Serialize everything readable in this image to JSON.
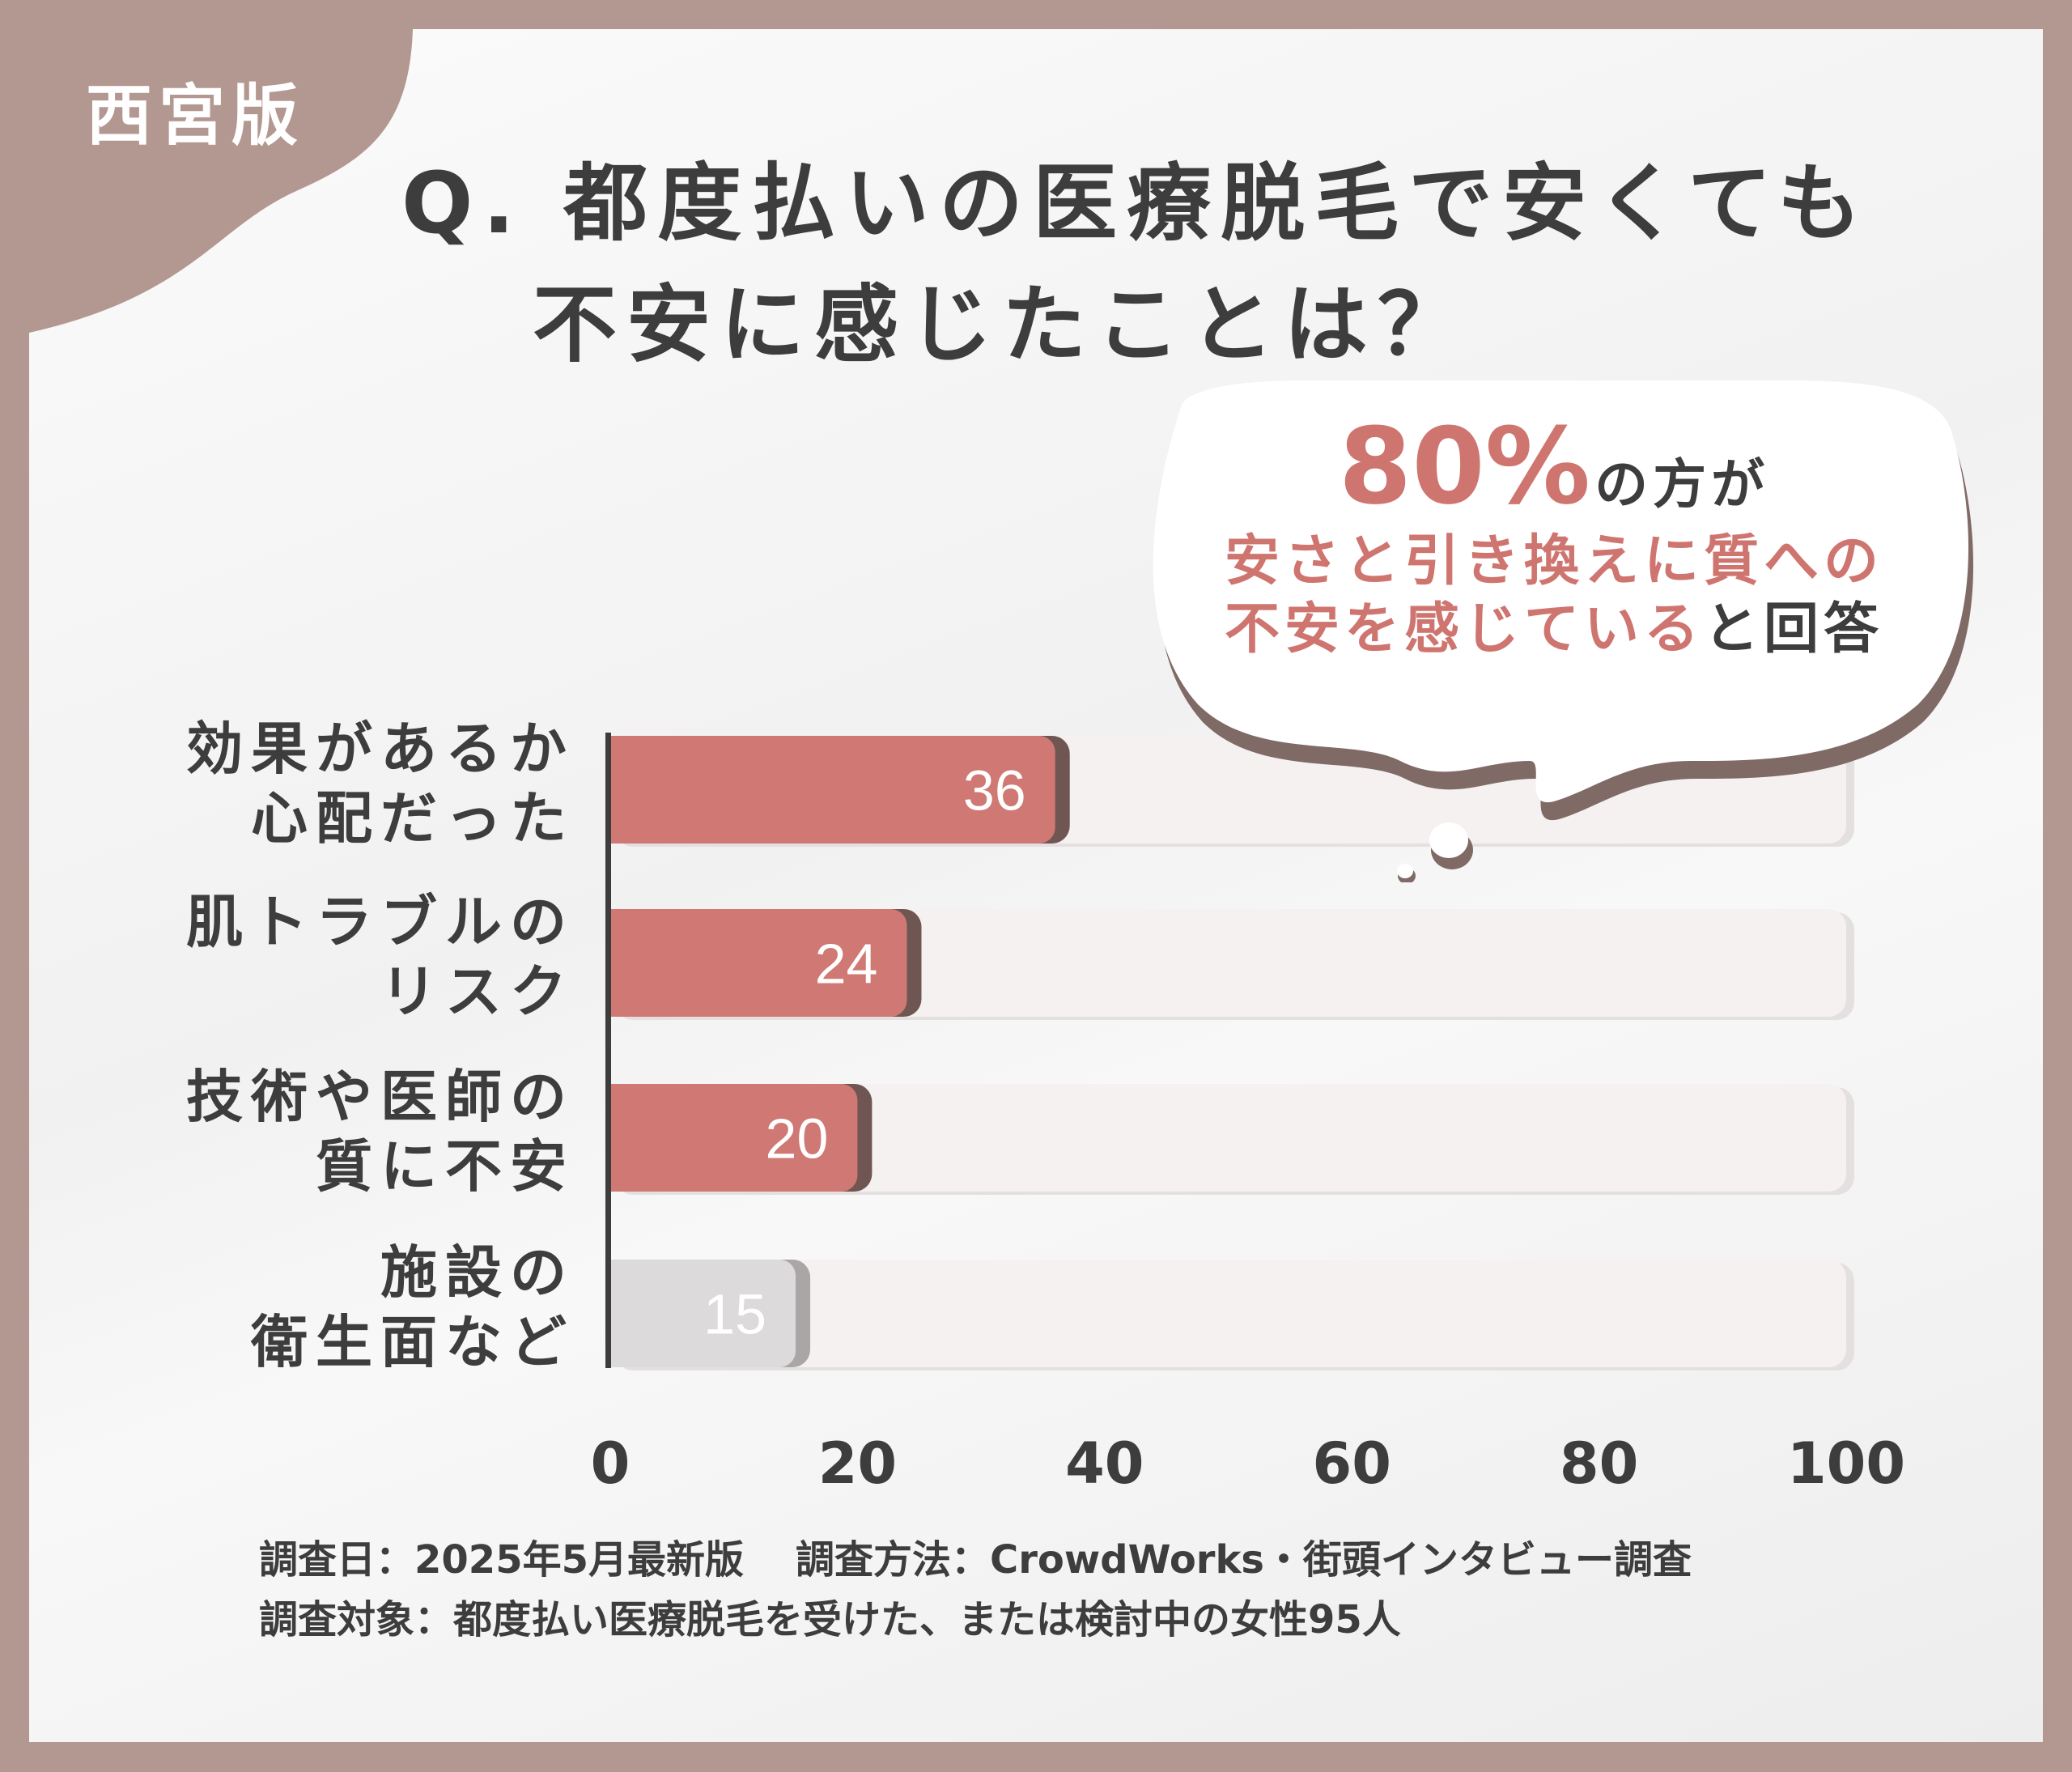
{
  "badge": "西宮版",
  "title": {
    "line1": "Q. 都度払いの医療脱毛で安くても",
    "line2": "不安に感じたことは？"
  },
  "callout": {
    "percent": "80%",
    "suffix": "の方が",
    "line1": "安さと引き換えに質への",
    "line2_highlight": "不安を感じている",
    "line2_plain": "と回答"
  },
  "chart_data": {
    "type": "bar",
    "orientation": "horizontal",
    "categories": [
      [
        "効果があるか",
        "心配だった"
      ],
      [
        "肌トラブルの",
        "リスク"
      ],
      [
        "技術や医師の",
        "質に不安"
      ],
      [
        "施設の",
        "衛生面など"
      ]
    ],
    "values": [
      36,
      24,
      20,
      15
    ],
    "value_labels": [
      "36",
      "24",
      "20",
      "15"
    ],
    "bar_colors": [
      "#d07873",
      "#d07873",
      "#d07873",
      "#dcdada"
    ],
    "xlim": [
      0,
      100
    ],
    "xticks": [
      "0",
      "20",
      "40",
      "60",
      "80",
      "100"
    ],
    "xtick_values": [
      0,
      20,
      40,
      60,
      80,
      100
    ],
    "grid": false
  },
  "footer": {
    "date": "調査日：2025年5月最新版",
    "method": "調査方法：CrowdWorks・街頭インタビュー調査",
    "target": "調査対象：都度払い医療脱毛を受けた、または検討中の女性95人"
  },
  "colors": {
    "frame": "#b39891",
    "accent": "#cf7570",
    "text": "#3d3d3d"
  }
}
